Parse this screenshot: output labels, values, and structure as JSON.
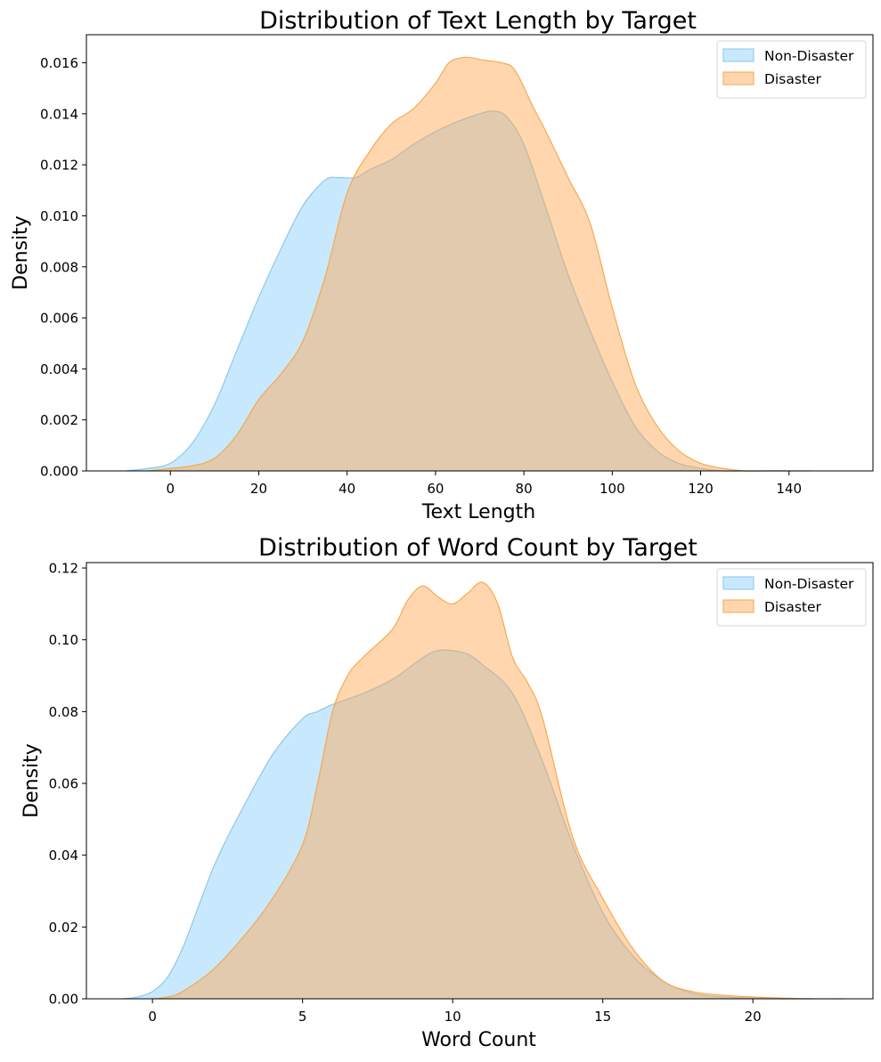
{
  "chart_data": [
    {
      "type": "area",
      "title": "Distribution of Text Length by Target",
      "xlabel": "Text Length",
      "ylabel": "Density",
      "xlim": [
        -19,
        159
      ],
      "ylim": [
        0,
        0.0171
      ],
      "xticks": [
        0,
        20,
        40,
        60,
        80,
        100,
        120,
        140
      ],
      "yticks": [
        0.0,
        0.002,
        0.004,
        0.006,
        0.008,
        0.01,
        0.012,
        0.014,
        0.016
      ],
      "ytick_decimals": 3,
      "legend_position": "top-right",
      "grid": false,
      "series": [
        {
          "name": "Non-Disaster",
          "color": "#87CEFA",
          "edge_color": "#89c5ea",
          "x": [
            -10,
            -5,
            0,
            5,
            10,
            15,
            20,
            25,
            30,
            35,
            38,
            42,
            45,
            50,
            55,
            60,
            65,
            70,
            73,
            76,
            80,
            85,
            90,
            95,
            100,
            105,
            110,
            115,
            120,
            125,
            130,
            135,
            140
          ],
          "y": [
            0.0,
            0.0001,
            0.0003,
            0.0011,
            0.0026,
            0.0047,
            0.0068,
            0.0087,
            0.0104,
            0.0114,
            0.0115,
            0.0115,
            0.0118,
            0.0122,
            0.0128,
            0.0133,
            0.0137,
            0.014,
            0.0141,
            0.0139,
            0.0128,
            0.0103,
            0.0077,
            0.0055,
            0.0035,
            0.0018,
            0.0008,
            0.0003,
            0.0001,
            0.0,
            0.0,
            0.0,
            0.0
          ]
        },
        {
          "name": "Disaster",
          "color": "#FFA54F",
          "edge_color": "#f5a64a",
          "x": [
            -5,
            0,
            5,
            10,
            15,
            20,
            25,
            30,
            35,
            40,
            45,
            50,
            55,
            60,
            63,
            66,
            68,
            71,
            75,
            78,
            82,
            85,
            90,
            95,
            100,
            105,
            110,
            115,
            120,
            125,
            130,
            135,
            140,
            145
          ],
          "y": [
            0.0,
            0.0001,
            0.0002,
            0.0005,
            0.0014,
            0.0028,
            0.0038,
            0.0051,
            0.0076,
            0.0109,
            0.0125,
            0.0136,
            0.0142,
            0.0152,
            0.016,
            0.0162,
            0.0162,
            0.0161,
            0.016,
            0.0157,
            0.0143,
            0.0133,
            0.0115,
            0.0097,
            0.0064,
            0.0035,
            0.0018,
            0.0008,
            0.0003,
            0.0001,
            0.0,
            0.0,
            0.0,
            0.0
          ]
        }
      ]
    },
    {
      "type": "area",
      "title": "Distribution of Word Count by Target",
      "xlabel": "Word Count",
      "ylabel": "Density",
      "xlim": [
        -2.2,
        24.0
      ],
      "ylim": [
        0,
        0.1215
      ],
      "xticks": [
        0,
        5,
        10,
        15,
        20
      ],
      "yticks": [
        0.0,
        0.02,
        0.04,
        0.06,
        0.08,
        0.1,
        0.12
      ],
      "ytick_decimals": 2,
      "legend_position": "top-right",
      "grid": false,
      "series": [
        {
          "name": "Non-Disaster",
          "color": "#87CEFA",
          "edge_color": "#89c5ea",
          "x": [
            -1,
            -0.5,
            0,
            0.5,
            1,
            1.5,
            2,
            2.5,
            3,
            4,
            5,
            5.5,
            6,
            7,
            8,
            9,
            9.5,
            10,
            10.5,
            11,
            12,
            13,
            14,
            15,
            16,
            17,
            18,
            19,
            20,
            21,
            22
          ],
          "y": [
            0.0,
            0.0005,
            0.002,
            0.006,
            0.014,
            0.025,
            0.036,
            0.045,
            0.053,
            0.068,
            0.078,
            0.08,
            0.082,
            0.085,
            0.089,
            0.095,
            0.097,
            0.097,
            0.096,
            0.093,
            0.085,
            0.066,
            0.043,
            0.024,
            0.012,
            0.005,
            0.0015,
            0.0005,
            0.0002,
            0.0,
            0.0
          ]
        },
        {
          "name": "Disaster",
          "color": "#FFA54F",
          "edge_color": "#f5a64a",
          "x": [
            0,
            0.5,
            1,
            2,
            3,
            4,
            5,
            5.5,
            6,
            6.5,
            7,
            8,
            8.5,
            9,
            9.5,
            10,
            10.5,
            11,
            11.5,
            12,
            12.5,
            13,
            14,
            15,
            16,
            17,
            18,
            19,
            20,
            21,
            22,
            23
          ],
          "y": [
            0.0,
            0.0005,
            0.002,
            0.008,
            0.017,
            0.028,
            0.043,
            0.06,
            0.08,
            0.09,
            0.095,
            0.103,
            0.111,
            0.115,
            0.112,
            0.11,
            0.113,
            0.116,
            0.11,
            0.095,
            0.088,
            0.078,
            0.045,
            0.028,
            0.014,
            0.005,
            0.002,
            0.001,
            0.0005,
            0.0002,
            0.0,
            0.0
          ]
        }
      ]
    }
  ]
}
